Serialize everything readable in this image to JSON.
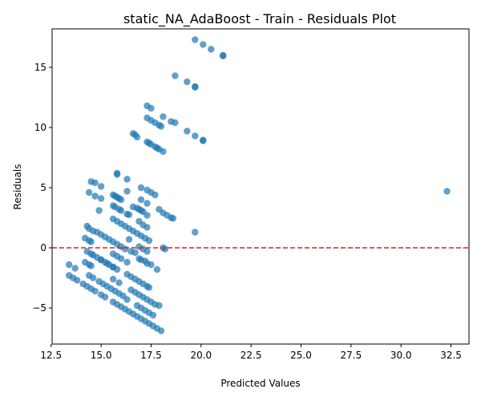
{
  "chart_data": {
    "type": "scatter",
    "title": "static_NA_AdaBoost - Train - Residuals Plot",
    "xlabel": "Predicted Values",
    "ylabel": "Residuals",
    "xlim": [
      12.55,
      33.4
    ],
    "ylim": [
      -8.0,
      18.2
    ],
    "xticks": [
      12.5,
      15.0,
      17.5,
      20.0,
      22.5,
      25.0,
      27.5,
      30.0,
      32.5
    ],
    "xtick_labels": [
      "12.5",
      "15.0",
      "17.5",
      "20.0",
      "22.5",
      "25.0",
      "27.5",
      "30.0",
      "32.5"
    ],
    "yticks": [
      -5,
      0,
      5,
      10,
      15
    ],
    "ytick_labels": [
      "−5",
      "0",
      "5",
      "10",
      "15"
    ],
    "grid": false,
    "point_color": "#1f77b4",
    "reference_line": {
      "y": 0,
      "color": "#d62728",
      "style": "dashed"
    },
    "points": [
      [
        19.7,
        17.3
      ],
      [
        20.1,
        16.9
      ],
      [
        20.5,
        16.5
      ],
      [
        21.1,
        16.0
      ],
      [
        21.1,
        15.95
      ],
      [
        18.7,
        14.3
      ],
      [
        19.3,
        13.8
      ],
      [
        19.7,
        13.4
      ],
      [
        19.7,
        13.35
      ],
      [
        17.3,
        11.8
      ],
      [
        17.5,
        11.6
      ],
      [
        18.1,
        10.9
      ],
      [
        18.5,
        10.5
      ],
      [
        18.7,
        10.4
      ],
      [
        17.3,
        10.8
      ],
      [
        17.5,
        10.6
      ],
      [
        17.7,
        10.4
      ],
      [
        17.9,
        10.2
      ],
      [
        18.0,
        10.1
      ],
      [
        19.3,
        9.7
      ],
      [
        19.7,
        9.3
      ],
      [
        20.1,
        8.9
      ],
      [
        20.1,
        8.95
      ],
      [
        16.6,
        9.5
      ],
      [
        16.7,
        9.4
      ],
      [
        16.8,
        9.2
      ],
      [
        17.3,
        8.8
      ],
      [
        17.4,
        8.7
      ],
      [
        17.5,
        8.6
      ],
      [
        17.7,
        8.4
      ],
      [
        17.8,
        8.3
      ],
      [
        17.9,
        8.2
      ],
      [
        18.1,
        8.0
      ],
      [
        15.8,
        6.2
      ],
      [
        15.8,
        6.1
      ],
      [
        16.3,
        5.7
      ],
      [
        14.5,
        5.5
      ],
      [
        14.7,
        5.4
      ],
      [
        15.0,
        5.1
      ],
      [
        17.0,
        5.0
      ],
      [
        17.3,
        4.8
      ],
      [
        17.5,
        4.6
      ],
      [
        17.7,
        4.4
      ],
      [
        16.3,
        4.7
      ],
      [
        14.4,
        4.6
      ],
      [
        14.7,
        4.3
      ],
      [
        15.0,
        4.1
      ],
      [
        15.6,
        4.4
      ],
      [
        15.7,
        4.3
      ],
      [
        15.8,
        4.2
      ],
      [
        15.9,
        4.1
      ],
      [
        16.0,
        4.0
      ],
      [
        17.0,
        4.0
      ],
      [
        15.6,
        3.5
      ],
      [
        15.7,
        3.4
      ],
      [
        15.9,
        3.2
      ],
      [
        16.0,
        3.1
      ],
      [
        16.3,
        2.8
      ],
      [
        16.4,
        2.75
      ],
      [
        16.6,
        3.4
      ],
      [
        16.8,
        3.3
      ],
      [
        16.9,
        3.2
      ],
      [
        17.0,
        3.1
      ],
      [
        17.1,
        3.0
      ],
      [
        17.3,
        3.7
      ],
      [
        17.9,
        3.2
      ],
      [
        18.1,
        2.9
      ],
      [
        18.3,
        2.7
      ],
      [
        18.5,
        2.5
      ],
      [
        18.6,
        2.45
      ],
      [
        17.3,
        2.7
      ],
      [
        14.9,
        3.1
      ],
      [
        15.6,
        2.4
      ],
      [
        15.8,
        2.2
      ],
      [
        16.0,
        2.0
      ],
      [
        16.2,
        1.8
      ],
      [
        16.4,
        1.6
      ],
      [
        16.6,
        1.4
      ],
      [
        16.8,
        1.2
      ],
      [
        17.0,
        1.0
      ],
      [
        17.2,
        0.8
      ],
      [
        17.4,
        0.6
      ],
      [
        16.9,
        2.2
      ],
      [
        17.1,
        1.9
      ],
      [
        17.3,
        1.7
      ],
      [
        14.3,
        1.8
      ],
      [
        14.4,
        1.6
      ],
      [
        14.6,
        1.4
      ],
      [
        14.8,
        1.3
      ],
      [
        15.0,
        1.1
      ],
      [
        15.2,
        0.9
      ],
      [
        15.4,
        0.7
      ],
      [
        15.6,
        0.5
      ],
      [
        15.8,
        0.3
      ],
      [
        16.0,
        0.1
      ],
      [
        16.2,
        -0.1
      ],
      [
        14.2,
        0.8
      ],
      [
        14.4,
        0.6
      ],
      [
        14.5,
        0.5
      ],
      [
        14.3,
        -0.3
      ],
      [
        14.5,
        -0.5
      ],
      [
        14.6,
        -0.6
      ],
      [
        14.8,
        -0.8
      ],
      [
        15.0,
        -1.0
      ],
      [
        15.2,
        -1.2
      ],
      [
        15.4,
        -1.4
      ],
      [
        15.6,
        -1.6
      ],
      [
        15.8,
        -1.8
      ],
      [
        16.4,
        0.7
      ],
      [
        16.5,
        -0.3
      ],
      [
        16.7,
        -0.4
      ],
      [
        16.9,
        0.1
      ],
      [
        17.1,
        -0.1
      ],
      [
        17.3,
        -0.3
      ],
      [
        18.1,
        0.0
      ],
      [
        18.2,
        -0.1
      ],
      [
        17.8,
        -1.8
      ],
      [
        19.7,
        1.3
      ],
      [
        32.3,
        4.7
      ],
      [
        15.6,
        -0.5
      ],
      [
        15.8,
        -0.7
      ],
      [
        16.0,
        -0.9
      ],
      [
        16.3,
        -1.2
      ],
      [
        16.9,
        -0.9
      ],
      [
        17.0,
        -1.0
      ],
      [
        17.2,
        -1.1
      ],
      [
        17.3,
        -1.3
      ],
      [
        17.5,
        -1.4
      ],
      [
        13.4,
        -1.4
      ],
      [
        13.7,
        -1.7
      ],
      [
        14.2,
        -1.2
      ],
      [
        14.4,
        -1.4
      ],
      [
        14.5,
        -1.5
      ],
      [
        15.0,
        -1.0
      ],
      [
        15.3,
        -1.3
      ],
      [
        15.6,
        -1.6
      ],
      [
        13.4,
        -2.3
      ],
      [
        13.6,
        -2.5
      ],
      [
        13.8,
        -2.7
      ],
      [
        14.1,
        -3.0
      ],
      [
        14.3,
        -3.2
      ],
      [
        14.5,
        -3.4
      ],
      [
        14.7,
        -3.6
      ],
      [
        14.4,
        -2.3
      ],
      [
        14.6,
        -2.5
      ],
      [
        14.9,
        -2.8
      ],
      [
        15.1,
        -3.0
      ],
      [
        15.3,
        -3.2
      ],
      [
        15.5,
        -3.4
      ],
      [
        15.7,
        -3.6
      ],
      [
        15.9,
        -3.8
      ],
      [
        16.1,
        -4.0
      ],
      [
        16.3,
        -4.3
      ],
      [
        15.6,
        -2.6
      ],
      [
        15.9,
        -2.9
      ],
      [
        16.3,
        -2.2
      ],
      [
        16.5,
        -2.4
      ],
      [
        16.7,
        -2.6
      ],
      [
        16.9,
        -2.8
      ],
      [
        17.1,
        -3.0
      ],
      [
        17.3,
        -3.2
      ],
      [
        17.4,
        -3.3
      ],
      [
        15.0,
        -3.9
      ],
      [
        15.2,
        -4.1
      ],
      [
        15.6,
        -4.5
      ],
      [
        15.8,
        -4.7
      ],
      [
        16.0,
        -4.9
      ],
      [
        16.2,
        -5.1
      ],
      [
        16.4,
        -5.3
      ],
      [
        16.6,
        -5.5
      ],
      [
        16.8,
        -5.7
      ],
      [
        17.0,
        -5.9
      ],
      [
        17.2,
        -6.1
      ],
      [
        17.4,
        -6.3
      ],
      [
        17.6,
        -6.5
      ],
      [
        17.8,
        -6.7
      ],
      [
        18.0,
        -6.9
      ],
      [
        16.5,
        -3.5
      ],
      [
        16.7,
        -3.7
      ],
      [
        16.9,
        -3.9
      ],
      [
        17.1,
        -4.1
      ],
      [
        17.3,
        -4.3
      ],
      [
        17.5,
        -4.5
      ],
      [
        17.7,
        -4.7
      ],
      [
        17.9,
        -4.8
      ],
      [
        16.8,
        -4.8
      ],
      [
        17.0,
        -5.0
      ],
      [
        17.2,
        -5.2
      ],
      [
        17.4,
        -5.4
      ],
      [
        17.6,
        -5.6
      ]
    ]
  }
}
